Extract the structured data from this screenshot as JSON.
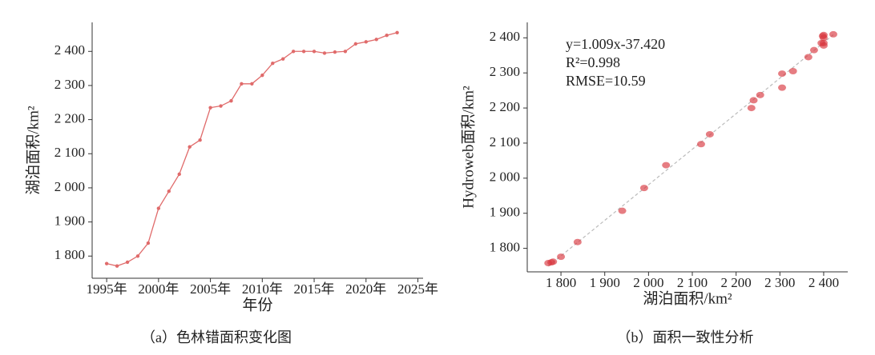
{
  "chart_data": [
    {
      "type": "line",
      "xlabel": "年份",
      "ylabel": "湖泊面积/km²",
      "caption": "（a）色林错面积变化图",
      "x": [
        1995,
        1996,
        1997,
        1998,
        1999,
        2000,
        2001,
        2002,
        2003,
        2004,
        2005,
        2006,
        2007,
        2008,
        2009,
        2010,
        2011,
        2012,
        2013,
        2014,
        2015,
        2016,
        2017,
        2018,
        2019,
        2020,
        2021,
        2022,
        2023
      ],
      "values": [
        1778,
        1771,
        1782,
        1800,
        1838,
        1940,
        1990,
        2040,
        2120,
        2140,
        2235,
        2240,
        2255,
        2305,
        2305,
        2330,
        2365,
        2378,
        2400,
        2400,
        2400,
        2395,
        2398,
        2400,
        2422,
        2428,
        2435,
        2447,
        2455
      ],
      "color": "#e06b6b",
      "xlim": [
        1993.6,
        2025.5
      ],
      "ylim": [
        1735,
        2485
      ],
      "xticks": [
        {
          "value": 1995,
          "label": "1995年"
        },
        {
          "value": 2000,
          "label": "2000年"
        },
        {
          "value": 2005,
          "label": "2005年"
        },
        {
          "value": 2010,
          "label": "2010年"
        },
        {
          "value": 2015,
          "label": "2015年"
        },
        {
          "value": 2020,
          "label": "2020年"
        },
        {
          "value": 2025,
          "label": "2025年"
        }
      ],
      "yticks": [
        {
          "value": 1800,
          "label": "1 800"
        },
        {
          "value": 1900,
          "label": "1 900"
        },
        {
          "value": 2000,
          "label": "2 000"
        },
        {
          "value": 2100,
          "label": "2 100"
        },
        {
          "value": 2200,
          "label": "2 200"
        },
        {
          "value": 2300,
          "label": "2 300"
        },
        {
          "value": 2400,
          "label": "2 400"
        }
      ]
    },
    {
      "type": "scatter",
      "xlabel": "湖泊面积/km²",
      "ylabel": "Hydroweb面积/km²",
      "caption": "（b）面积一致性分析",
      "annotations": [
        "y=1.009x-37.420",
        "R²=0.998",
        "RMSE=10.59"
      ],
      "trendline": true,
      "x": [
        1771,
        1778,
        1782,
        1800,
        1838,
        1940,
        1990,
        2040,
        2120,
        2140,
        2235,
        2240,
        2255,
        2305,
        2305,
        2330,
        2365,
        2378,
        2400,
        2400,
        2400,
        2395,
        2398,
        2400,
        2422
      ],
      "values": [
        1758,
        1760,
        1762,
        1776,
        1818,
        1907,
        1972,
        2037,
        2097,
        2125,
        2200,
        2222,
        2237,
        2258,
        2298,
        2305,
        2345,
        2365,
        2378,
        2385,
        2400,
        2385,
        2405,
        2408,
        2410
      ],
      "color": "#d9383f",
      "xlim": [
        1723,
        2455
      ],
      "ylim": [
        1733,
        2444
      ],
      "xticks": [
        {
          "value": 1800,
          "label": "1 800"
        },
        {
          "value": 1900,
          "label": "1 900"
        },
        {
          "value": 2000,
          "label": "2 000"
        },
        {
          "value": 2100,
          "label": "2 100"
        },
        {
          "value": 2200,
          "label": "2 200"
        },
        {
          "value": 2300,
          "label": "2 300"
        },
        {
          "value": 2400,
          "label": "2 400"
        }
      ],
      "yticks": [
        {
          "value": 1800,
          "label": "1 800"
        },
        {
          "value": 1900,
          "label": "1 900"
        },
        {
          "value": 2000,
          "label": "2 000"
        },
        {
          "value": 2100,
          "label": "2 100"
        },
        {
          "value": 2200,
          "label": "2 200"
        },
        {
          "value": 2300,
          "label": "2 300"
        },
        {
          "value": 2400,
          "label": "2 400"
        }
      ]
    }
  ]
}
